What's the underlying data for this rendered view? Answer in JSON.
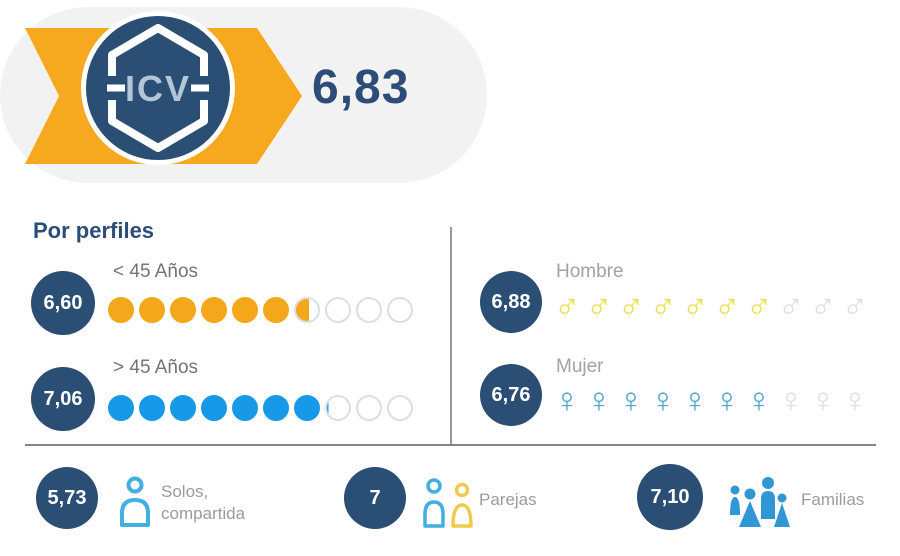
{
  "header": {
    "badge_label": "ICV",
    "value": "6,83"
  },
  "section_title": "Por perfiles",
  "ratings": [
    {
      "value_label": "6,60",
      "value": 6.6,
      "max": 10,
      "label": "<  45 Años",
      "type": "dot",
      "color": "#F5A71B",
      "label_color": "#70747F"
    },
    {
      "value_label": "7,06",
      "value": 7.06,
      "max": 10,
      "label": ">  45 Años",
      "type": "dot",
      "color": "#1899E8",
      "label_color": "#70747F"
    },
    {
      "value_label": "6,88",
      "value": 6.88,
      "max": 10,
      "label": "Hombre",
      "type": "male",
      "color": "#E7E243",
      "label_color": "#9EA2AA"
    },
    {
      "value_label": "6,76",
      "value": 6.76,
      "max": 10,
      "label": "Mujer",
      "type": "female",
      "color": "#47A4CF",
      "label_color": "#9EA2AA"
    }
  ],
  "bottom_items": [
    {
      "value_label": "5,73",
      "label": "Solos,\ncompartida",
      "icon": "single-person-icon"
    },
    {
      "value_label": "7",
      "label": "Parejas",
      "icon": "couple-icon"
    },
    {
      "value_label": "7,10",
      "label": "Familias",
      "icon": "family-icon"
    }
  ],
  "colors": {
    "navy": "#2A4E74",
    "navy_text": "#2B4D78",
    "orange": "#F6A81E",
    "pill_bg": "#F2F2F3",
    "dot_empty_border": "#D9DEE7",
    "symbol_empty": "#DEDEDE",
    "divider": "#838383",
    "bottom_label": "#9B9B9B",
    "person_blue": "#41AFE0",
    "person_yellow": "#EFCB4A",
    "family_blue": "#2F97D3",
    "badge_text": "#B3C6D8"
  },
  "chart_data": {
    "type": "bar",
    "subtype": "pictorial-rating",
    "title": "ICV",
    "scale_max": 10,
    "categories": [
      "ICV",
      "< 45 Años",
      "> 45 Años",
      "Hombre",
      "Mujer",
      "Solos, compartida",
      "Parejas",
      "Familias"
    ],
    "values": [
      6.83,
      6.6,
      7.06,
      6.88,
      6.76,
      5.73,
      7,
      7.1
    ],
    "legend_position": "none",
    "grid": false
  }
}
